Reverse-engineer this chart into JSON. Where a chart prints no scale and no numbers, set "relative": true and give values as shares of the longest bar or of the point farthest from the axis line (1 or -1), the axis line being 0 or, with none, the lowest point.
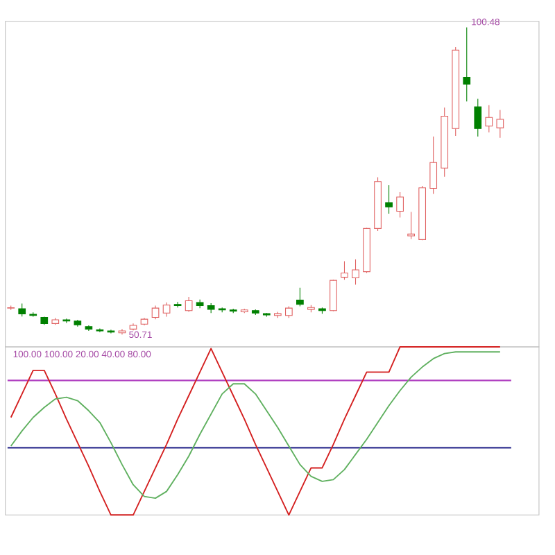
{
  "chart_data": [
    {
      "type": "candlestick",
      "categories": [
        null,
        null,
        null,
        null,
        null,
        null,
        null,
        null,
        null,
        null,
        null,
        null,
        null,
        null,
        null,
        null,
        null,
        null,
        null,
        null,
        null,
        null,
        null,
        null,
        null,
        null,
        null,
        null,
        null,
        null,
        null,
        null,
        null,
        null,
        null,
        null,
        null,
        null,
        null,
        null,
        null,
        null,
        null,
        null,
        null
      ],
      "ohlc": [
        [
          55.0,
          55.4,
          54.7,
          55.06
        ],
        [
          54.9,
          55.75,
          53.65,
          54.07
        ],
        [
          54.0,
          54.3,
          53.6,
          53.8
        ],
        [
          53.5,
          53.6,
          52.3,
          52.5
        ],
        [
          52.5,
          53.4,
          52.3,
          53.1
        ],
        [
          53.1,
          53.3,
          52.6,
          52.9
        ],
        [
          52.9,
          53.1,
          52.0,
          52.3
        ],
        [
          52.0,
          52.2,
          51.3,
          51.6
        ],
        [
          51.5,
          51.7,
          51.1,
          51.3
        ],
        [
          51.3,
          51.5,
          50.9,
          51.1
        ],
        [
          51.0,
          51.6,
          50.71,
          51.3
        ],
        [
          51.6,
          52.5,
          51.4,
          52.2
        ],
        [
          52.4,
          53.4,
          52.2,
          53.2
        ],
        [
          53.5,
          55.4,
          53.2,
          55.0
        ],
        [
          54.2,
          55.9,
          53.6,
          55.5
        ],
        [
          55.6,
          56.0,
          55.1,
          55.4
        ],
        [
          54.6,
          56.8,
          54.4,
          56.2
        ],
        [
          55.9,
          56.4,
          55.0,
          55.4
        ],
        [
          55.4,
          55.8,
          54.2,
          54.8
        ],
        [
          54.9,
          55.1,
          54.3,
          54.7
        ],
        [
          54.7,
          54.9,
          54.2,
          54.5
        ],
        [
          54.4,
          54.9,
          54.2,
          54.7
        ],
        [
          54.6,
          54.8,
          53.9,
          54.2
        ],
        [
          54.1,
          54.2,
          53.6,
          53.9
        ],
        [
          53.8,
          54.4,
          53.4,
          54.1
        ],
        [
          53.8,
          55.3,
          53.4,
          55.0
        ],
        [
          56.3,
          58.3,
          55.3,
          55.6
        ],
        [
          54.8,
          55.5,
          54.3,
          55.1
        ],
        [
          54.9,
          55.1,
          54.1,
          54.6
        ],
        [
          54.6,
          59.6,
          54.5,
          59.5
        ],
        [
          60.0,
          62.6,
          59.6,
          60.7
        ],
        [
          59.9,
          62.9,
          58.8,
          61.2
        ],
        [
          60.9,
          68.0,
          60.7,
          67.9
        ],
        [
          67.9,
          76.2,
          67.5,
          75.5
        ],
        [
          72.1,
          74.9,
          70.3,
          71.4
        ],
        [
          70.7,
          73.8,
          69.7,
          73.0
        ],
        [
          66.7,
          70.6,
          66.2,
          67.0
        ],
        [
          66.1,
          74.8,
          66.0,
          74.5
        ],
        [
          74.4,
          82.8,
          73.5,
          78.6
        ],
        [
          77.7,
          87.5,
          76.3,
          86.1
        ],
        [
          84.1,
          97.3,
          82.9,
          96.8
        ],
        [
          92.4,
          100.48,
          88.5,
          91.3
        ],
        [
          87.6,
          88.9,
          82.8,
          84.1
        ],
        [
          84.5,
          87.9,
          83.5,
          85.9
        ],
        [
          84.2,
          87.1,
          82.6,
          85.6
        ]
      ],
      "colors": [
        "#e06060",
        "#008000",
        "#008000",
        "#008000",
        "#e06060",
        "#008000",
        "#008000",
        "#008000",
        "#008000",
        "#008000",
        "#e06060",
        "#e06060",
        "#e06060",
        "#e06060",
        "#e06060",
        "#008000",
        "#e06060",
        "#008000",
        "#008000",
        "#008000",
        "#008000",
        "#e06060",
        "#008000",
        "#008000",
        "#e06060",
        "#e06060",
        "#008000",
        "#e06060",
        "#008000",
        "#e06060",
        "#e06060",
        "#e06060",
        "#e06060",
        "#e06060",
        "#008000",
        "#e06060",
        "#e06060",
        "#e06060",
        "#e06060",
        "#e06060",
        "#e06060",
        "#008000",
        "#008000",
        "#e06060",
        "#e06060"
      ],
      "annotations": [
        "100.48",
        "50.71"
      ],
      "tick_labels": false
    },
    {
      "type": "line",
      "relative": true,
      "tick_labels": false,
      "categories": [
        null,
        null,
        null,
        null,
        null,
        null,
        null,
        null,
        null,
        null,
        null,
        null,
        null,
        null,
        null,
        null,
        null,
        null,
        null,
        null,
        null,
        null,
        null,
        null,
        null,
        null,
        null,
        null,
        null,
        null,
        null,
        null,
        null,
        null,
        null,
        null,
        null,
        null,
        null,
        null,
        null,
        null,
        null,
        null,
        null
      ],
      "series": [
        {
          "color": "#d42020",
          "values": [
            0.58,
            0.72,
            0.86,
            0.86,
            0.72,
            0.57,
            0.43,
            0.29,
            0.14,
            0,
            0,
            0,
            0.14,
            0.28,
            0.42,
            0.57,
            0.71,
            0.85,
            0.99,
            0.85,
            0.71,
            0.57,
            0.42,
            0.28,
            0.14,
            0,
            0.14,
            0.28,
            0.28,
            0.42,
            0.57,
            0.71,
            0.85,
            0.85,
            0.85,
            1,
            1,
            1,
            1,
            1,
            1,
            1,
            1,
            1,
            1
          ]
        },
        {
          "color": "#5fb05f",
          "values": [
            0.41,
            0.5,
            0.58,
            0.64,
            0.69,
            0.7,
            0.68,
            0.62,
            0.55,
            0.43,
            0.3,
            0.18,
            0.11,
            0.1,
            0.14,
            0.24,
            0.35,
            0.48,
            0.6,
            0.72,
            0.78,
            0.78,
            0.72,
            0.62,
            0.52,
            0.41,
            0.3,
            0.23,
            0.2,
            0.21,
            0.27,
            0.36,
            0.45,
            0.55,
            0.65,
            0.74,
            0.82,
            0.88,
            0.93,
            0.96,
            0.97,
            0.97,
            0.97,
            0.97,
            0.97
          ]
        }
      ],
      "ref_lines": [
        {
          "axis": "y",
          "value": 0.8,
          "color": "#b040c0"
        },
        {
          "axis": "y",
          "value": 0.4,
          "color": "#303090"
        }
      ],
      "annotations": [
        "100.00",
        "100.00",
        "20.00",
        "40.00",
        "80.00"
      ]
    }
  ]
}
